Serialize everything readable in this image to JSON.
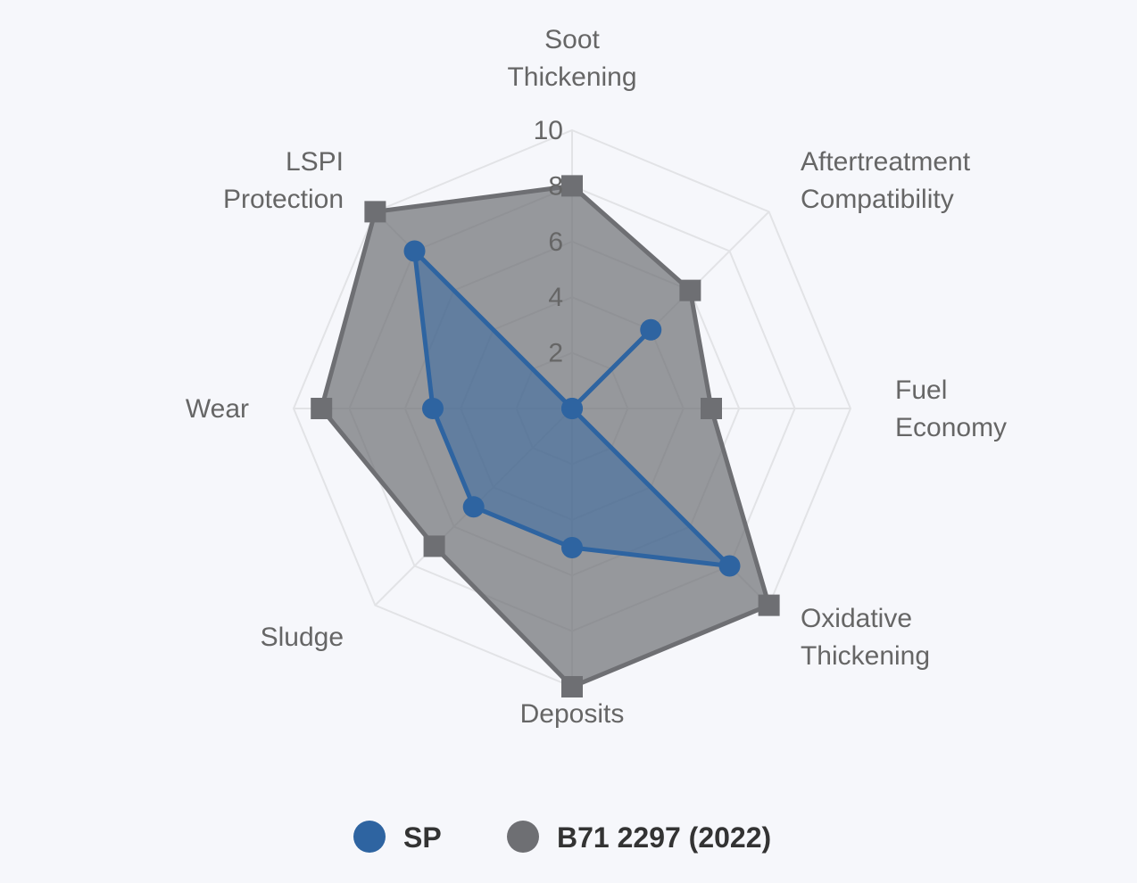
{
  "chart_data": {
    "type": "radar",
    "axes": [
      [
        "Soot",
        "Thickening"
      ],
      [
        "Aftertreatment",
        "Compatibility"
      ],
      [
        "Fuel",
        "Economy"
      ],
      [
        "Oxidative",
        "Thickening"
      ],
      [
        "Deposits"
      ],
      [
        "Sludge"
      ],
      [
        "Wear"
      ],
      [
        "LSPI",
        "Protection"
      ]
    ],
    "range": [
      0,
      10
    ],
    "ticks": [
      "2",
      "4",
      "6",
      "8",
      "10"
    ],
    "grid": true,
    "legend_position": "bottom",
    "series": [
      {
        "name": "SP",
        "values": [
          0,
          4,
          0,
          8,
          5,
          5,
          5,
          8
        ],
        "color": "#2e64a1",
        "marker": "circle"
      },
      {
        "name": "B71 2297 (2022)",
        "values": [
          8,
          6,
          5,
          10,
          10,
          7,
          9,
          10
        ],
        "color": "#6e6f73",
        "marker": "square"
      }
    ]
  }
}
